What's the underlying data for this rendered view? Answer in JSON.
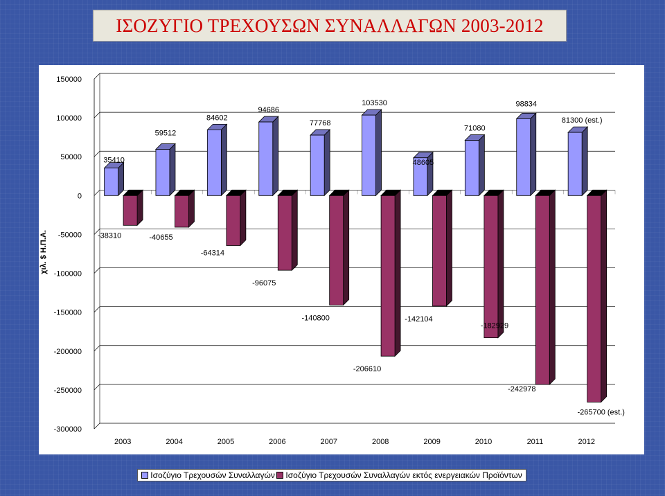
{
  "slide": {
    "title": "ΙΣΟΖΥΓΙΟ ΤΡΕΧΟΥΣΩΝ ΣΥΝΑΛΛΑΓΩΝ 2003-2012"
  },
  "colors": {
    "background": "#3a57a6",
    "title": "#cc0000",
    "series1": "#9999ff",
    "series2": "#993366"
  },
  "chart_data": {
    "type": "bar",
    "ylabel": "χιλ. $ Η.Π.Α.",
    "ylim": [
      -300000,
      150000
    ],
    "yticks": [
      150000,
      100000,
      50000,
      0,
      -50000,
      -100000,
      -150000,
      -200000,
      -250000,
      -300000
    ],
    "grid": true,
    "legend_position": "bottom",
    "categories": [
      "2003",
      "2004",
      "2005",
      "2006",
      "2007",
      "2008",
      "2009",
      "2010",
      "2011",
      "2012"
    ],
    "series": [
      {
        "name": "Ισοζύγιο Τρεχουσών Συναλλαγών",
        "color": "#9999ff",
        "values": [
          35410,
          59512,
          84602,
          94686,
          77768,
          103530,
          48605,
          71080,
          98834,
          81300
        ],
        "labels": [
          "35410",
          "59512",
          "84602",
          "94686",
          "77768",
          "103530",
          "48605",
          "71080",
          "98834",
          "81300 (est.)"
        ]
      },
      {
        "name": "Ισοζύγιο Τρεχουσών Συναλλαγών εκτός ενεργειακών Προϊόντων",
        "color": "#993366",
        "values": [
          -38310,
          -40655,
          -64314,
          -96075,
          -140800,
          -206610,
          -142104,
          -182929,
          -242978,
          -265700
        ],
        "labels": [
          "-38310",
          "-40655",
          "-64314",
          "-96075",
          "-140800",
          "-206610",
          "-142104",
          "-182929",
          "-242978",
          "-265700 (est.)"
        ]
      }
    ]
  }
}
